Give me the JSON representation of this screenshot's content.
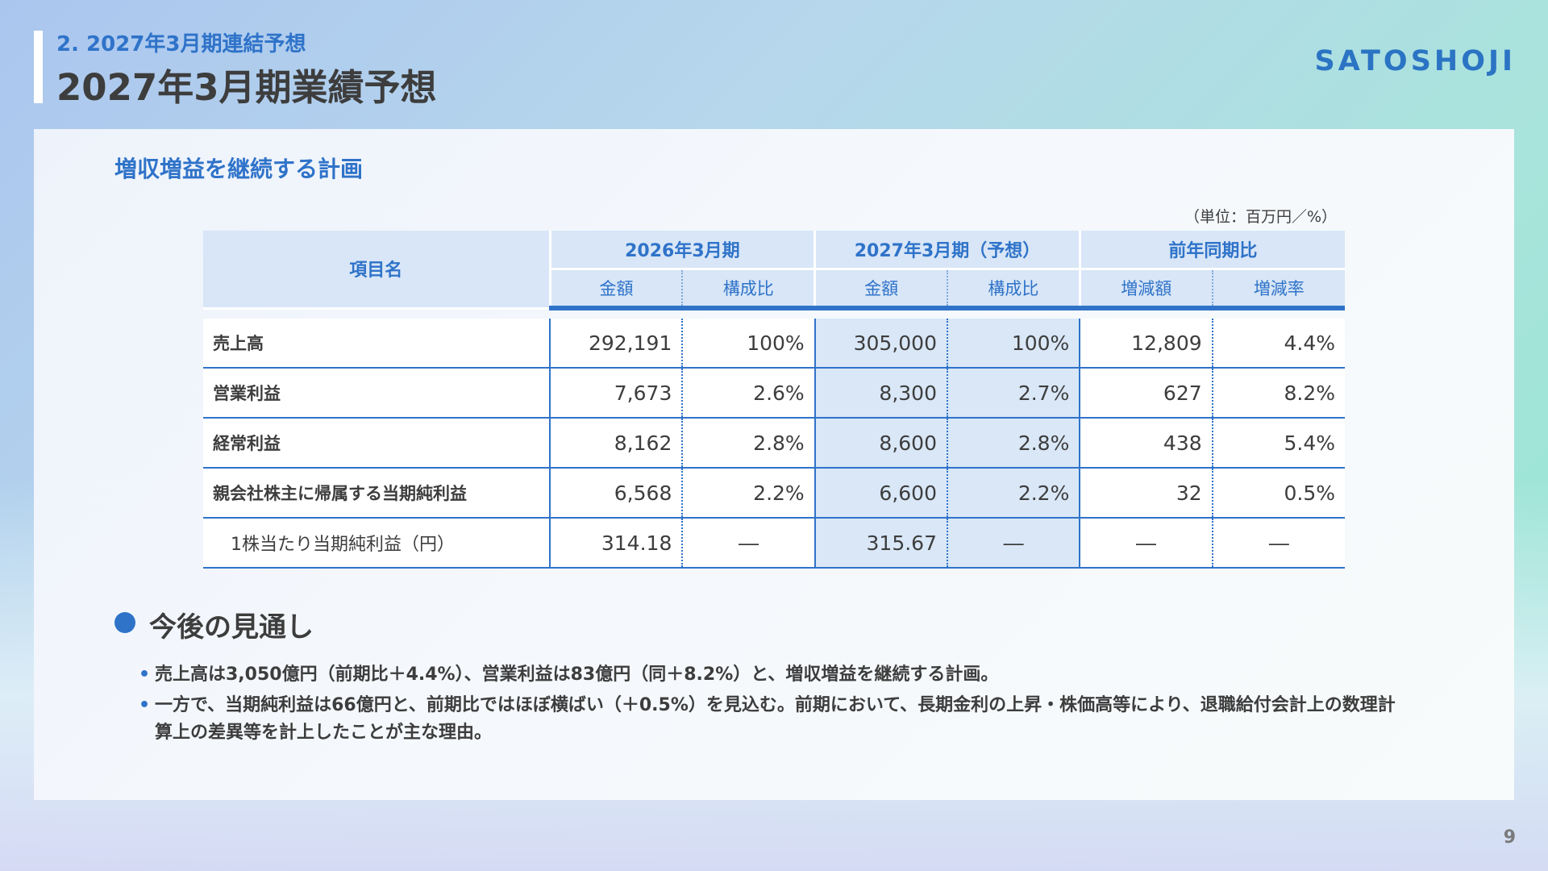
{
  "header": {
    "section": "2. 2027年3月期連結予想",
    "title": "2027年3月期業績予想",
    "logo": "SATOSHOJI"
  },
  "panel": {
    "heading": "増収増益を継続する計画",
    "unit_note": "（単位：百万円／%）"
  },
  "table": {
    "item_header": "項目名",
    "groups": [
      "2026年3月期",
      "2027年3月期（予想）",
      "前年同期比"
    ],
    "subheaders": [
      "金額",
      "構成比",
      "金額",
      "構成比",
      "増減額",
      "増減率"
    ],
    "rows": [
      {
        "label": "売上高",
        "values": [
          "292,191",
          "100%",
          "305,000",
          "100%",
          "12,809",
          "4.4%"
        ]
      },
      {
        "label": "営業利益",
        "values": [
          "7,673",
          "2.6%",
          "8,300",
          "2.7%",
          "627",
          "8.2%"
        ]
      },
      {
        "label": "経常利益",
        "values": [
          "8,162",
          "2.8%",
          "8,600",
          "2.8%",
          "438",
          "5.4%"
        ]
      },
      {
        "label": "親会社株主に帰属する当期純利益",
        "values": [
          "6,568",
          "2.2%",
          "6,600",
          "2.2%",
          "32",
          "0.5%"
        ]
      },
      {
        "label": "1株当たり当期純利益（円）",
        "values": [
          "314.18",
          "―",
          "315.67",
          "―",
          "―",
          "―"
        ]
      }
    ]
  },
  "outlook": {
    "heading": "今後の見通し",
    "bullet_char": "•",
    "bullets": [
      "売上高は3,050億円（前期比＋4.4%）、営業利益は83億円（同＋8.2%）と、増収増益を継続する計画。",
      "一方で、当期純利益は66億円と、前期比ではほぼ横ばい（＋0.5%）を見込む。前期において、長期金利の上昇・株価高等により、退職給付会計上の数理計算上の差異等を計上したことが主な理由。"
    ]
  },
  "page_number": "9",
  "colors": {
    "accent": "#2f73c9",
    "text": "#3d3d3d",
    "header_cell": "#d8e6f7",
    "highlight_cell": "#d9e7f7"
  }
}
